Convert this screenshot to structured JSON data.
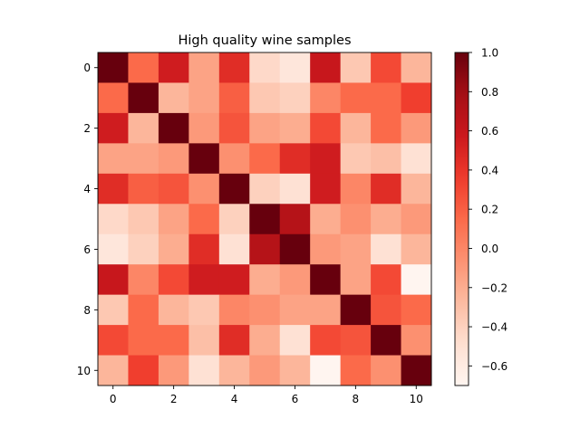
{
  "chart_data": {
    "type": "heatmap",
    "title": "High quality wine samples",
    "xlabel": "",
    "ylabel": "",
    "x_ticks": [
      "0",
      "2",
      "4",
      "6",
      "8",
      "10"
    ],
    "y_ticks": [
      "0",
      "2",
      "4",
      "6",
      "8",
      "10"
    ],
    "rows": [
      "0",
      "1",
      "2",
      "3",
      "4",
      "5",
      "6",
      "7",
      "8",
      "9",
      "10"
    ],
    "cols": [
      "0",
      "1",
      "2",
      "3",
      "4",
      "5",
      "6",
      "7",
      "8",
      "9",
      "10"
    ],
    "colormap": "Reds",
    "vmin": -0.7,
    "vmax": 1.0,
    "colorbar_ticks": [
      "1.0",
      "0.8",
      "0.6",
      "0.4",
      "0.2",
      "0.0",
      "−0.2",
      "−0.4",
      "−0.6"
    ],
    "colorbar_tick_values": [
      1.0,
      0.8,
      0.6,
      0.4,
      0.2,
      0.0,
      -0.2,
      -0.4,
      -0.6
    ],
    "values": [
      [
        1.0,
        0.15,
        0.55,
        -0.15,
        0.45,
        -0.45,
        -0.55,
        0.6,
        -0.35,
        0.3,
        -0.25
      ],
      [
        0.15,
        1.0,
        -0.25,
        -0.15,
        0.2,
        -0.35,
        -0.4,
        0.0,
        0.15,
        0.15,
        0.35
      ],
      [
        0.55,
        -0.25,
        1.0,
        -0.1,
        0.25,
        -0.15,
        -0.2,
        0.3,
        -0.25,
        0.15,
        -0.1
      ],
      [
        -0.15,
        -0.15,
        -0.1,
        1.0,
        -0.05,
        0.15,
        0.45,
        0.55,
        -0.35,
        -0.3,
        -0.5
      ],
      [
        0.45,
        0.2,
        0.25,
        -0.05,
        1.0,
        -0.4,
        -0.5,
        0.55,
        0.0,
        0.45,
        -0.25
      ],
      [
        -0.45,
        -0.35,
        -0.15,
        0.15,
        -0.4,
        1.0,
        0.7,
        -0.2,
        -0.05,
        -0.2,
        -0.1
      ],
      [
        -0.55,
        -0.4,
        -0.2,
        0.45,
        -0.5,
        0.7,
        1.0,
        -0.1,
        -0.15,
        -0.5,
        -0.25
      ],
      [
        0.6,
        0.0,
        0.3,
        0.55,
        0.55,
        -0.2,
        -0.1,
        1.0,
        -0.15,
        0.3,
        -0.7
      ],
      [
        -0.35,
        0.15,
        -0.25,
        -0.35,
        0.0,
        -0.05,
        -0.15,
        -0.15,
        1.0,
        0.25,
        0.15
      ],
      [
        0.3,
        0.15,
        0.15,
        -0.3,
        0.45,
        -0.2,
        -0.5,
        0.3,
        0.25,
        1.0,
        -0.05
      ],
      [
        -0.25,
        0.35,
        -0.1,
        -0.5,
        -0.25,
        -0.1,
        -0.25,
        -0.7,
        0.15,
        -0.05,
        1.0
      ]
    ]
  }
}
